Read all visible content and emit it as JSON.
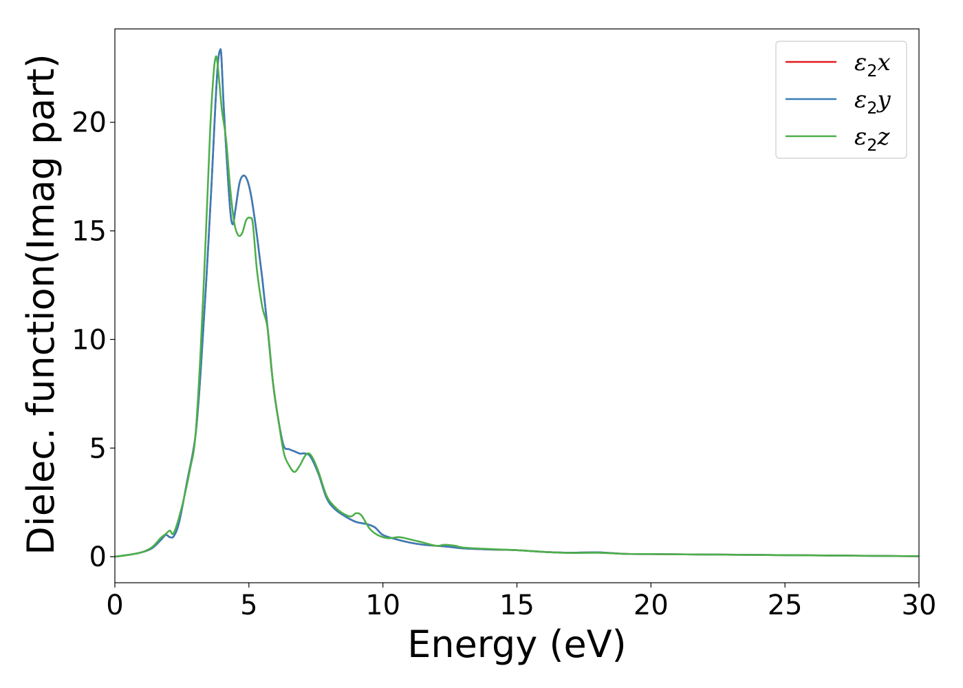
{
  "chart_data": {
    "type": "line",
    "xlabel": "Energy (eV)",
    "ylabel": "Dielec. function(Imag part)",
    "xlim": [
      0,
      30
    ],
    "ylim": [
      -1.2,
      24.3
    ],
    "xticks": [
      0,
      5,
      10,
      15,
      20,
      25,
      30
    ],
    "xtick_labels": [
      "0",
      "5",
      "10",
      "15",
      "20",
      "25",
      "30"
    ],
    "yticks": [
      0,
      5,
      10,
      15,
      20
    ],
    "ytick_labels": [
      "0",
      "5",
      "10",
      "15",
      "20"
    ],
    "grid": false,
    "legend_position": "top-right",
    "series": [
      {
        "name": "ε2x",
        "legend_base": "ε",
        "legend_sub": "2",
        "legend_var": "x",
        "color": "#e41a1c",
        "x": [
          0,
          0.5,
          1.0,
          1.4,
          1.7,
          1.9,
          2.05,
          2.2,
          2.4,
          2.7,
          3.0,
          3.2,
          3.4,
          3.6,
          3.75,
          3.85,
          3.92,
          3.97,
          4.05,
          4.15,
          4.3,
          4.4,
          4.5,
          4.65,
          4.8,
          4.95,
          5.1,
          5.3,
          5.5,
          5.7,
          5.9,
          6.1,
          6.3,
          6.5,
          6.7,
          6.9,
          7.1,
          7.3,
          7.6,
          7.9,
          8.2,
          8.6,
          9.0,
          9.4,
          9.7,
          10.0,
          10.5,
          11.0,
          11.5,
          12.0,
          12.5,
          13.0,
          14.0,
          15.0,
          16.0,
          17.0,
          18.0,
          19.0,
          20.0,
          22.0,
          24.0,
          26.0,
          28.0,
          30.0
        ],
        "values": [
          0.0,
          0.08,
          0.2,
          0.4,
          0.75,
          1.0,
          0.9,
          0.95,
          1.6,
          3.5,
          5.5,
          8.5,
          12.5,
          17.0,
          20.8,
          22.8,
          23.3,
          23.1,
          21.0,
          18.8,
          16.0,
          15.3,
          16.0,
          17.2,
          17.55,
          17.3,
          16.5,
          14.8,
          12.8,
          10.5,
          8.0,
          6.3,
          5.1,
          4.95,
          4.85,
          4.75,
          4.75,
          4.6,
          3.8,
          2.7,
          2.2,
          1.85,
          1.6,
          1.5,
          1.35,
          1.0,
          0.8,
          0.65,
          0.55,
          0.5,
          0.45,
          0.38,
          0.33,
          0.3,
          0.22,
          0.18,
          0.2,
          0.13,
          0.12,
          0.1,
          0.08,
          0.06,
          0.04,
          0.02
        ]
      },
      {
        "name": "ε2y",
        "legend_base": "ε",
        "legend_sub": "2",
        "legend_var": "y",
        "color": "#377eb8",
        "x": [
          0,
          0.5,
          1.0,
          1.4,
          1.7,
          1.9,
          2.05,
          2.2,
          2.4,
          2.7,
          3.0,
          3.2,
          3.4,
          3.6,
          3.75,
          3.85,
          3.92,
          3.97,
          4.05,
          4.15,
          4.3,
          4.4,
          4.5,
          4.65,
          4.8,
          4.95,
          5.1,
          5.3,
          5.5,
          5.7,
          5.9,
          6.1,
          6.3,
          6.5,
          6.7,
          6.9,
          7.1,
          7.3,
          7.6,
          7.9,
          8.2,
          8.6,
          9.0,
          9.4,
          9.7,
          10.0,
          10.5,
          11.0,
          11.5,
          12.0,
          12.5,
          13.0,
          14.0,
          15.0,
          16.0,
          17.0,
          18.0,
          19.0,
          20.0,
          22.0,
          24.0,
          26.0,
          28.0,
          30.0
        ],
        "values": [
          0.0,
          0.08,
          0.2,
          0.4,
          0.75,
          1.0,
          0.9,
          0.95,
          1.6,
          3.5,
          5.5,
          8.5,
          12.5,
          17.0,
          20.8,
          22.8,
          23.3,
          23.1,
          21.0,
          18.8,
          16.0,
          15.3,
          16.0,
          17.2,
          17.55,
          17.3,
          16.5,
          14.8,
          12.8,
          10.5,
          8.0,
          6.3,
          5.1,
          4.95,
          4.85,
          4.75,
          4.75,
          4.6,
          3.8,
          2.7,
          2.2,
          1.85,
          1.6,
          1.5,
          1.35,
          1.0,
          0.8,
          0.65,
          0.55,
          0.5,
          0.45,
          0.38,
          0.33,
          0.3,
          0.22,
          0.18,
          0.2,
          0.13,
          0.12,
          0.1,
          0.08,
          0.06,
          0.04,
          0.02
        ]
      },
      {
        "name": "ε2z",
        "legend_base": "ε",
        "legend_sub": "2",
        "legend_var": "z",
        "color": "#4daf4a",
        "x": [
          0,
          0.5,
          1.0,
          1.4,
          1.7,
          1.9,
          2.05,
          2.2,
          2.5,
          2.8,
          3.0,
          3.2,
          3.4,
          3.55,
          3.68,
          3.76,
          3.82,
          3.9,
          4.0,
          4.15,
          4.3,
          4.45,
          4.6,
          4.75,
          4.9,
          5.05,
          5.15,
          5.3,
          5.5,
          5.7,
          5.9,
          6.1,
          6.3,
          6.5,
          6.7,
          6.9,
          7.1,
          7.25,
          7.4,
          7.6,
          7.9,
          8.2,
          8.5,
          8.8,
          9.0,
          9.2,
          9.5,
          9.8,
          10.2,
          10.6,
          11.0,
          11.5,
          12.0,
          12.3,
          12.7,
          13.0,
          14.0,
          15.0,
          16.0,
          17.0,
          18.0,
          19.0,
          20.0,
          22.0,
          24.0,
          26.0,
          28.0,
          30.0
        ],
        "values": [
          0.0,
          0.08,
          0.2,
          0.45,
          0.85,
          1.05,
          1.2,
          1.1,
          2.3,
          4.0,
          5.5,
          9.5,
          15.0,
          19.5,
          22.2,
          23.0,
          22.8,
          21.8,
          20.5,
          19.2,
          17.0,
          15.4,
          14.8,
          14.9,
          15.5,
          15.6,
          15.3,
          13.2,
          11.5,
          10.5,
          8.0,
          6.3,
          4.8,
          4.2,
          3.9,
          4.2,
          4.65,
          4.75,
          4.5,
          3.9,
          2.8,
          2.3,
          2.0,
          1.85,
          2.0,
          1.9,
          1.3,
          1.0,
          0.85,
          0.9,
          0.8,
          0.65,
          0.5,
          0.55,
          0.5,
          0.42,
          0.35,
          0.3,
          0.22,
          0.17,
          0.18,
          0.13,
          0.12,
          0.1,
          0.08,
          0.06,
          0.04,
          0.02
        ]
      }
    ]
  }
}
